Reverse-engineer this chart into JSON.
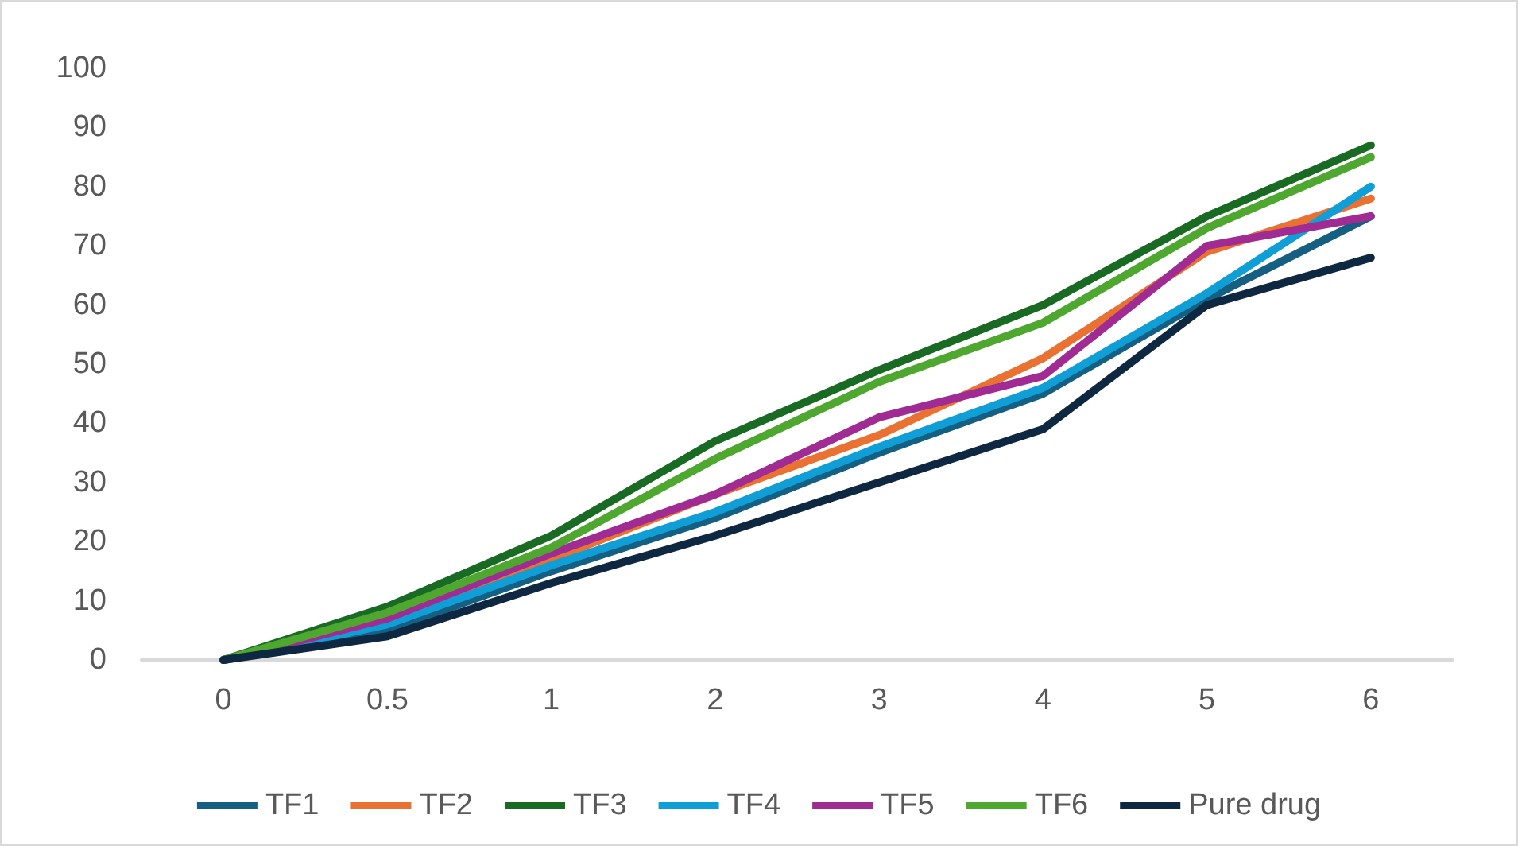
{
  "chart_data": {
    "type": "line",
    "categories": [
      "0",
      "0.5",
      "1",
      "2",
      "3",
      "4",
      "5",
      "6"
    ],
    "series": [
      {
        "name": "TF1",
        "color": "#156082",
        "values": [
          0,
          5,
          15,
          24,
          35,
          45,
          61,
          75
        ]
      },
      {
        "name": "TF2",
        "color": "#e97132",
        "values": [
          0,
          7,
          17,
          28,
          38,
          51,
          69,
          78
        ]
      },
      {
        "name": "TF3",
        "color": "#196b24",
        "values": [
          0,
          9,
          21,
          37,
          49,
          60,
          75,
          87
        ]
      },
      {
        "name": "TF4",
        "color": "#0f9ed5",
        "values": [
          0,
          6,
          16,
          25,
          36,
          46,
          62,
          80
        ]
      },
      {
        "name": "TF5",
        "color": "#a02b93",
        "values": [
          0,
          7,
          18,
          28,
          41,
          48,
          70,
          75
        ]
      },
      {
        "name": "TF6",
        "color": "#4ea72e",
        "values": [
          0,
          8,
          19,
          34,
          47,
          57,
          73,
          85
        ]
      },
      {
        "name": "Pure drug",
        "color": "#0e2841",
        "values": [
          0,
          4,
          13,
          21,
          30,
          39,
          60,
          68
        ]
      }
    ],
    "ylim": [
      0,
      100
    ],
    "yticks": [
      0,
      10,
      20,
      30,
      40,
      50,
      60,
      70,
      80,
      90,
      100
    ],
    "grid": false,
    "legend": "bottom",
    "marker": "none",
    "line_style": "solid"
  }
}
